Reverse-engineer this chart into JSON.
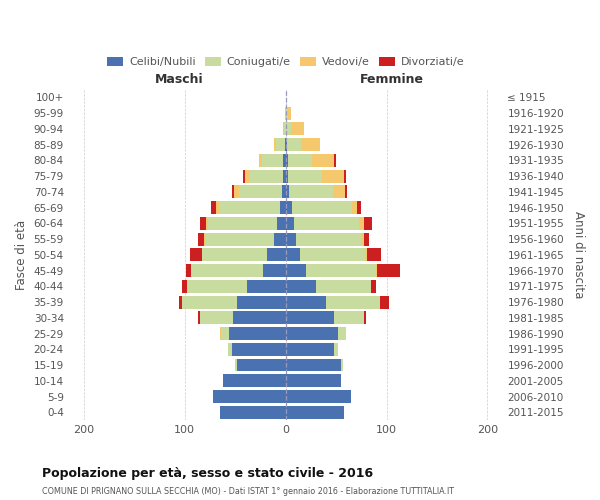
{
  "age_groups": [
    "100+",
    "95-99",
    "90-94",
    "85-89",
    "80-84",
    "75-79",
    "70-74",
    "65-69",
    "60-64",
    "55-59",
    "50-54",
    "45-49",
    "40-44",
    "35-39",
    "30-34",
    "25-29",
    "20-24",
    "15-19",
    "10-14",
    "5-9",
    "0-4"
  ],
  "birth_years": [
    "≤ 1915",
    "1916-1920",
    "1921-1925",
    "1926-1930",
    "1931-1935",
    "1936-1940",
    "1941-1945",
    "1946-1950",
    "1951-1955",
    "1956-1960",
    "1961-1965",
    "1966-1970",
    "1971-1975",
    "1976-1980",
    "1981-1985",
    "1986-1990",
    "1991-1995",
    "1996-2000",
    "2001-2005",
    "2006-2010",
    "2011-2015"
  ],
  "maschi_celibi": [
    0,
    0,
    0,
    1,
    3,
    3,
    4,
    6,
    9,
    12,
    18,
    22,
    38,
    48,
    52,
    56,
    53,
    48,
    62,
    72,
    65
  ],
  "maschi_coniugati": [
    0,
    1,
    2,
    9,
    20,
    32,
    42,
    60,
    68,
    68,
    65,
    72,
    60,
    55,
    33,
    8,
    4,
    2,
    0,
    0,
    0
  ],
  "maschi_vedovi": [
    0,
    0,
    1,
    2,
    3,
    5,
    5,
    3,
    2,
    1,
    0,
    0,
    0,
    0,
    0,
    1,
    0,
    0,
    0,
    0,
    0
  ],
  "maschi_divorziati": [
    0,
    0,
    0,
    0,
    0,
    2,
    2,
    5,
    6,
    6,
    12,
    5,
    5,
    3,
    2,
    0,
    0,
    0,
    0,
    0,
    0
  ],
  "femmine_nubili": [
    0,
    0,
    0,
    1,
    2,
    2,
    3,
    6,
    8,
    10,
    14,
    20,
    30,
    40,
    48,
    52,
    48,
    55,
    55,
    65,
    58
  ],
  "femmine_coniugate": [
    0,
    2,
    5,
    14,
    24,
    34,
    44,
    60,
    65,
    65,
    65,
    70,
    55,
    54,
    30,
    8,
    4,
    2,
    0,
    0,
    0
  ],
  "femmine_vedove": [
    0,
    3,
    13,
    19,
    22,
    22,
    12,
    5,
    5,
    3,
    2,
    1,
    0,
    0,
    0,
    0,
    0,
    0,
    0,
    0,
    0
  ],
  "femmine_divorziate": [
    0,
    0,
    0,
    0,
    2,
    2,
    2,
    4,
    8,
    5,
    14,
    22,
    5,
    8,
    2,
    0,
    0,
    0,
    0,
    0,
    0
  ],
  "color_celibi": "#4b72b0",
  "color_coniugati": "#c8dca0",
  "color_vedovi": "#f5c86e",
  "color_divorziati": "#cc2020",
  "xlim": 215,
  "title": "Popolazione per età, sesso e stato civile - 2016",
  "subtitle": "COMUNE DI PRIGNANO SULLA SECCHIA (MO) - Dati ISTAT 1° gennaio 2016 - Elaborazione TUTTITALIA.IT",
  "ylabel_left": "Fasce di età",
  "ylabel_right": "Anni di nascita",
  "label_maschi": "Maschi",
  "label_femmine": "Femmine",
  "legend_labels": [
    "Celibi/Nubili",
    "Coniugati/e",
    "Vedovi/e",
    "Divorziati/e"
  ],
  "bg_color": "#ffffff",
  "grid_color": "#cccccc",
  "center_line_color": "#9999bb",
  "text_color": "#555555",
  "title_color": "#111111"
}
